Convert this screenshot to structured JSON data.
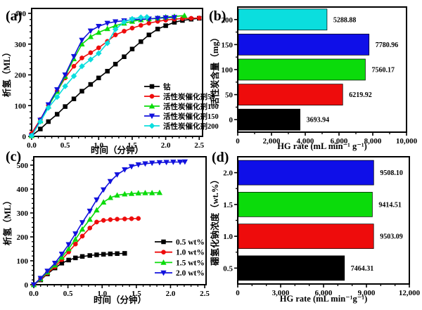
{
  "figure_background": "#ffffff",
  "chart_data": [
    {
      "panel": "a",
      "label": "(a)",
      "type": "line",
      "xlabel": "时间（分钟）",
      "ylabel": "析氢（ML）",
      "xlim": [
        0,
        2.55
      ],
      "ylim": [
        0,
        416
      ],
      "xticks": [
        0,
        0.5,
        1.0,
        1.5,
        2.0,
        2.5
      ],
      "xtick_labels": [
        "0.0",
        "0.5",
        "1.0",
        "1.5",
        "2.0",
        "2.5"
      ],
      "yticks": [
        0,
        100,
        200,
        300,
        400
      ],
      "ytick_labels": [
        "0",
        "100",
        "200",
        "300",
        "400"
      ],
      "x_minor_step": 0.1,
      "y_minor_step": 20,
      "grid": false,
      "legend_position": "lower-right",
      "series": [
        {
          "name": "钴",
          "color": "#000000",
          "marker": "square",
          "points": [
            [
              0,
              2
            ],
            [
              0.13,
              24
            ],
            [
              0.25,
              48
            ],
            [
              0.38,
              72
            ],
            [
              0.5,
              97
            ],
            [
              0.63,
              122
            ],
            [
              0.75,
              147
            ],
            [
              0.88,
              169
            ],
            [
              1.0,
              190
            ],
            [
              1.13,
              212
            ],
            [
              1.25,
              235
            ],
            [
              1.38,
              259
            ],
            [
              1.5,
              284
            ],
            [
              1.63,
              308
            ],
            [
              1.75,
              330
            ],
            [
              1.88,
              349
            ],
            [
              2.0,
              360
            ],
            [
              2.13,
              371
            ],
            [
              2.25,
              377
            ],
            [
              2.38,
              381
            ],
            [
              2.5,
              384
            ]
          ]
        },
        {
          "name": "活性炭催化剂50",
          "color": "#ee0c0c",
          "marker": "circle",
          "points": [
            [
              0,
              10
            ],
            [
              0.13,
              55
            ],
            [
              0.25,
              101
            ],
            [
              0.38,
              147
            ],
            [
              0.5,
              190
            ],
            [
              0.63,
              228
            ],
            [
              0.75,
              255
            ],
            [
              0.88,
              272
            ],
            [
              1.0,
              288
            ],
            [
              1.13,
              309
            ],
            [
              1.25,
              330
            ],
            [
              1.38,
              342
            ],
            [
              1.5,
              352
            ],
            [
              1.63,
              361
            ],
            [
              1.75,
              368
            ],
            [
              1.88,
              374
            ],
            [
              2.0,
              378
            ],
            [
              2.13,
              381
            ],
            [
              2.25,
              383
            ],
            [
              2.38,
              384
            ],
            [
              2.5,
              385
            ]
          ]
        },
        {
          "name": "活性炭催化剂100",
          "color": "#0bdb0b",
          "marker": "triangle-up",
          "points": [
            [
              0,
              2
            ],
            [
              0.13,
              50
            ],
            [
              0.25,
              98
            ],
            [
              0.38,
              146
            ],
            [
              0.5,
              195
            ],
            [
              0.63,
              252
            ],
            [
              0.75,
              300
            ],
            [
              0.88,
              324
            ],
            [
              1.0,
              338
            ],
            [
              1.13,
              350
            ],
            [
              1.25,
              360
            ],
            [
              1.38,
              368
            ],
            [
              1.5,
              374
            ],
            [
              1.63,
              379
            ],
            [
              1.75,
              382
            ],
            [
              1.88,
              385
            ],
            [
              2.0,
              388
            ],
            [
              2.13,
              390
            ],
            [
              2.28,
              393
            ]
          ]
        },
        {
          "name": "活性炭催化剂150",
          "color": "#1212dd",
          "marker": "triangle-down",
          "points": [
            [
              0,
              2
            ],
            [
              0.13,
              53
            ],
            [
              0.25,
              103
            ],
            [
              0.38,
              152
            ],
            [
              0.5,
              200
            ],
            [
              0.63,
              260
            ],
            [
              0.75,
              313
            ],
            [
              0.88,
              343
            ],
            [
              1.0,
              358
            ],
            [
              1.13,
              368
            ],
            [
              1.25,
              373
            ],
            [
              1.38,
              376
            ],
            [
              1.5,
              379
            ],
            [
              1.63,
              381
            ],
            [
              1.75,
              382
            ],
            [
              1.88,
              384
            ],
            [
              2.0,
              386
            ],
            [
              2.13,
              387
            ]
          ]
        },
        {
          "name": "活性炭催化剂200",
          "color": "#0bdede",
          "marker": "diamond",
          "points": [
            [
              0,
              2
            ],
            [
              0.13,
              48
            ],
            [
              0.25,
              93
            ],
            [
              0.38,
              128
            ],
            [
              0.5,
              163
            ],
            [
              0.63,
              196
            ],
            [
              0.75,
              228
            ],
            [
              0.88,
              250
            ],
            [
              1.0,
              270
            ],
            [
              1.13,
              303
            ],
            [
              1.25,
              348
            ],
            [
              1.38,
              372
            ],
            [
              1.5,
              382
            ],
            [
              1.63,
              387
            ],
            [
              1.72,
              388
            ]
          ]
        }
      ]
    },
    {
      "panel": "b",
      "label": "(b)",
      "type": "bar",
      "orientation": "horizontal",
      "xlabel": "HG rate (mL min⁻¹ g⁻¹)",
      "ylabel": "活性炭含量（mg）",
      "xlim": [
        0,
        10000
      ],
      "xticks": [
        0,
        2000,
        4000,
        6000,
        8000,
        10000
      ],
      "xtick_labels": [
        "0",
        "2,000",
        "4,000",
        "6,000",
        "8,000",
        "10,000"
      ],
      "x_minor_step": 1000,
      "categories": [
        "0",
        "50",
        "100",
        "150",
        "200"
      ],
      "values": [
        3693.94,
        6219.92,
        7560.17,
        7780.96,
        5288.88
      ],
      "value_labels": [
        "3693.94",
        "6219.92",
        "7560.17",
        "7780.96",
        "5288.88"
      ],
      "bar_colors": [
        "#000000",
        "#ee0c0c",
        "#0bdb0b",
        "#0f0fe8",
        "#0bdede"
      ]
    },
    {
      "panel": "c",
      "label": "(c)",
      "type": "line",
      "xlabel": "时间（分钟）",
      "ylabel": "析氢（ML）",
      "xlim": [
        0,
        2.52
      ],
      "ylim": [
        0,
        535
      ],
      "xticks": [
        0,
        0.5,
        1.0,
        1.5,
        2.0,
        2.5
      ],
      "xtick_labels": [
        "0.0",
        "0.5",
        "1.0",
        "1.5",
        "2.0",
        "2.5"
      ],
      "yticks": [
        0,
        100,
        200,
        300,
        400,
        500
      ],
      "ytick_labels": [
        "0",
        "100",
        "200",
        "300",
        "400",
        "500"
      ],
      "x_minor_step": 0.1,
      "y_minor_step": 20,
      "grid": false,
      "legend_position": "lower-right",
      "series": [
        {
          "name": "0.5 wt%",
          "color": "#000000",
          "marker": "square",
          "points": [
            [
              0,
              0
            ],
            [
              0.1,
              20
            ],
            [
              0.2,
              45
            ],
            [
              0.31,
              70
            ],
            [
              0.41,
              90
            ],
            [
              0.51,
              103
            ],
            [
              0.61,
              112
            ],
            [
              0.71,
              118
            ],
            [
              0.82,
              122
            ],
            [
              0.92,
              125
            ],
            [
              1.02,
              127
            ],
            [
              1.12,
              129
            ],
            [
              1.22,
              130
            ],
            [
              1.33,
              131
            ]
          ]
        },
        {
          "name": "1.0 wt%",
          "color": "#ee0c0c",
          "marker": "circle",
          "points": [
            [
              0,
              0
            ],
            [
              0.1,
              22
            ],
            [
              0.2,
              48
            ],
            [
              0.31,
              75
            ],
            [
              0.41,
              105
            ],
            [
              0.51,
              137
            ],
            [
              0.61,
              170
            ],
            [
              0.71,
              203
            ],
            [
              0.82,
              237
            ],
            [
              0.92,
              262
            ],
            [
              1.02,
              269
            ],
            [
              1.12,
              272
            ],
            [
              1.22,
              274
            ],
            [
              1.33,
              275
            ],
            [
              1.43,
              276
            ],
            [
              1.53,
              277
            ]
          ]
        },
        {
          "name": "1.5 wt%",
          "color": "#0bdb0b",
          "marker": "triangle-up",
          "points": [
            [
              0,
              0
            ],
            [
              0.1,
              24
            ],
            [
              0.2,
              52
            ],
            [
              0.31,
              82
            ],
            [
              0.41,
              115
            ],
            [
              0.51,
              150
            ],
            [
              0.61,
              190
            ],
            [
              0.71,
              232
            ],
            [
              0.82,
              273
            ],
            [
              0.92,
              312
            ],
            [
              1.02,
              345
            ],
            [
              1.12,
              364
            ],
            [
              1.22,
              374
            ],
            [
              1.33,
              379
            ],
            [
              1.43,
              381
            ],
            [
              1.53,
              383
            ],
            [
              1.63,
              384
            ],
            [
              1.73,
              384
            ],
            [
              1.84,
              385
            ]
          ]
        },
        {
          "name": "2.0 wt%",
          "color": "#1212dd",
          "marker": "triangle-down",
          "points": [
            [
              0,
              0
            ],
            [
              0.1,
              27
            ],
            [
              0.2,
              57
            ],
            [
              0.31,
              90
            ],
            [
              0.41,
              128
            ],
            [
              0.51,
              168
            ],
            [
              0.61,
              213
            ],
            [
              0.71,
              260
            ],
            [
              0.82,
              308
            ],
            [
              0.92,
              355
            ],
            [
              1.02,
              397
            ],
            [
              1.12,
              432
            ],
            [
              1.22,
              460
            ],
            [
              1.33,
              481
            ],
            [
              1.43,
              494
            ],
            [
              1.53,
              502
            ],
            [
              1.63,
              506
            ],
            [
              1.73,
              509
            ],
            [
              1.84,
              511
            ],
            [
              1.94,
              512
            ],
            [
              2.04,
              513
            ],
            [
              2.14,
              513
            ],
            [
              2.21,
              514
            ]
          ]
        }
      ]
    },
    {
      "panel": "d",
      "label": "(d)",
      "type": "bar",
      "orientation": "horizontal",
      "xlabel": "HG rate (mL min⁻¹g⁻¹)",
      "ylabel": "硼氢化钠浓度（wt.%）",
      "xlim": [
        0,
        12000
      ],
      "xticks": [
        0,
        3000,
        6000,
        9000,
        12000
      ],
      "xtick_labels": [
        "0",
        "3,000",
        "6,000",
        "9,000",
        "12,000"
      ],
      "x_minor_step": 1000,
      "categories": [
        "0.5",
        "1.0",
        "1.5",
        "2.0"
      ],
      "values": [
        7464.31,
        9503.09,
        9414.51,
        9508.1
      ],
      "value_labels": [
        "7464.31",
        "9503.09",
        "9414.51",
        "9508.10"
      ],
      "bar_colors": [
        "#000000",
        "#ee0c0c",
        "#0bdb0b",
        "#0f0fe8"
      ]
    }
  ]
}
